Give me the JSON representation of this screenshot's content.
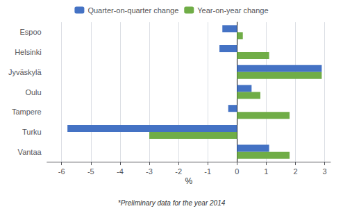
{
  "chart_data": {
    "type": "bar",
    "orientation": "horizontal",
    "categories": [
      "Espoo",
      "Helsinki",
      "Jyväskylä",
      "Oulu",
      "Tampere",
      "Turku",
      "Vantaa"
    ],
    "series": [
      {
        "name": "Quarter-on-quarter change",
        "color": "#4472c4",
        "values": [
          -0.5,
          -0.6,
          2.9,
          0.5,
          -0.3,
          -5.8,
          1.1
        ]
      },
      {
        "name": "Year-on-year change",
        "color": "#70ad47",
        "values": [
          0.2,
          1.1,
          2.9,
          0.8,
          1.8,
          -3.0,
          1.8
        ]
      }
    ],
    "xlabel": "%",
    "xlim": [
      -6.5,
      3.2
    ],
    "xticks": [
      -6,
      -5,
      -4,
      -3,
      -2,
      -1,
      0,
      1,
      2,
      3
    ],
    "grid": true,
    "legend": "top",
    "annotations": [
      "*Preliminary data for the year 2014"
    ]
  }
}
